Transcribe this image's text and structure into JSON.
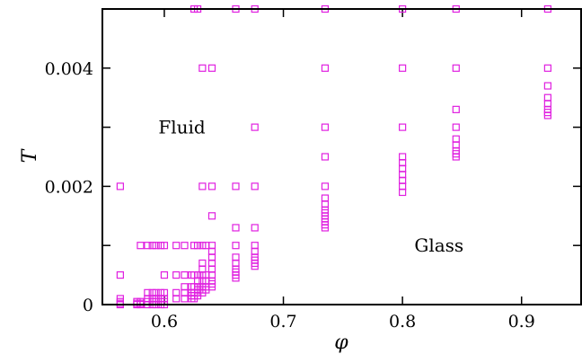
{
  "chart_data": {
    "type": "scatter",
    "xlabel": "φ",
    "ylabel": "T",
    "xlim": [
      0.548,
      0.95
    ],
    "ylim": [
      0,
      0.005
    ],
    "x_ticks": [
      {
        "value": 0.6,
        "label": "0.6"
      },
      {
        "value": 0.7,
        "label": "0.7"
      },
      {
        "value": 0.8,
        "label": "0.8"
      },
      {
        "value": 0.9,
        "label": "0.9"
      }
    ],
    "y_ticks": [
      {
        "value": 0,
        "label": "0"
      },
      {
        "value": 0.001,
        "label": ""
      },
      {
        "value": 0.002,
        "label": "0.002"
      },
      {
        "value": 0.003,
        "label": ""
      },
      {
        "value": 0.004,
        "label": "0.004"
      }
    ],
    "marker": "open-square",
    "marker_color": "#e020e0",
    "grid": false,
    "annotations": [
      {
        "text": "Fluid",
        "x": 0.595,
        "y": 0.003
      },
      {
        "text": "Glass",
        "x": 0.81,
        "y": 0.001
      }
    ],
    "columns": [
      {
        "x": 0.563,
        "y": [
          0.002,
          0.0005,
          0.0001,
          5e-05,
          2e-05,
          0
        ]
      },
      {
        "x": 0.577,
        "y": [
          5e-05,
          2e-05,
          0
        ]
      },
      {
        "x": 0.58,
        "y": [
          0.001,
          5e-05,
          2e-05,
          0
        ]
      },
      {
        "x": 0.586,
        "y": [
          0.001,
          0.0002,
          0.0001,
          5e-05,
          0
        ]
      },
      {
        "x": 0.59,
        "y": [
          0.001,
          0.0002,
          0.0001,
          5e-05,
          0
        ]
      },
      {
        "x": 0.593,
        "y": [
          0.001,
          0.0002,
          0.0001,
          5e-05,
          0
        ]
      },
      {
        "x": 0.597,
        "y": [
          0.001,
          0.0002,
          0.0001,
          5e-05,
          0
        ]
      },
      {
        "x": 0.6,
        "y": [
          0.001,
          0.0005,
          0.0002,
          0.0001,
          5e-05,
          0
        ]
      },
      {
        "x": 0.61,
        "y": [
          0.001,
          0.0005,
          0.0002,
          0.0001
        ]
      },
      {
        "x": 0.617,
        "y": [
          0.001,
          0.0005,
          0.0003,
          0.0002,
          0.0001
        ]
      },
      {
        "x": 0.623,
        "y": [
          0.0005,
          0.0003,
          0.0002,
          0.00015,
          0.0001
        ]
      },
      {
        "x": 0.625,
        "y": [
          0.005,
          0.001,
          0.0005,
          0.0003,
          0.0002,
          0.00015,
          0.0001
        ]
      },
      {
        "x": 0.628,
        "y": [
          0.005,
          0.001,
          0.0005,
          0.0004,
          0.0003,
          0.00025,
          0.0002,
          0.00015
        ]
      },
      {
        "x": 0.632,
        "y": [
          0.004,
          0.002,
          0.001,
          0.0007,
          0.0006,
          0.0005,
          0.0004,
          0.0003,
          0.00025,
          0.0002
        ]
      },
      {
        "x": 0.635,
        "y": [
          0.001,
          0.0005,
          0.0004,
          0.0003,
          0.00025
        ]
      },
      {
        "x": 0.64,
        "y": [
          0.004,
          0.002,
          0.0015,
          0.001,
          0.0009,
          0.0008,
          0.0007,
          0.0006,
          0.0005,
          0.0004,
          0.00035,
          0.0003
        ]
      },
      {
        "x": 0.66,
        "y": [
          0.005,
          0.002,
          0.0013,
          0.001,
          0.0008,
          0.0007,
          0.0006,
          0.00055,
          0.0005,
          0.00045
        ]
      },
      {
        "x": 0.676,
        "y": [
          0.005,
          0.003,
          0.002,
          0.0013,
          0.001,
          0.0009,
          0.0008,
          0.00075,
          0.0007,
          0.00065
        ]
      },
      {
        "x": 0.735,
        "y": [
          0.005,
          0.004,
          0.003,
          0.0025,
          0.002,
          0.0018,
          0.0017,
          0.0016,
          0.00155,
          0.0015,
          0.00145,
          0.0014,
          0.00135,
          0.0013
        ]
      },
      {
        "x": 0.8,
        "y": [
          0.005,
          0.004,
          0.003,
          0.0025,
          0.0024,
          0.0023,
          0.0022,
          0.0021,
          0.002,
          0.0019
        ]
      },
      {
        "x": 0.845,
        "y": [
          0.005,
          0.004,
          0.0033,
          0.003,
          0.0028,
          0.0027,
          0.0026,
          0.00255,
          0.0025
        ]
      },
      {
        "x": 0.922,
        "y": [
          0.005,
          0.004,
          0.0037,
          0.0035,
          0.0034,
          0.0033,
          0.00325,
          0.0032
        ]
      }
    ]
  }
}
